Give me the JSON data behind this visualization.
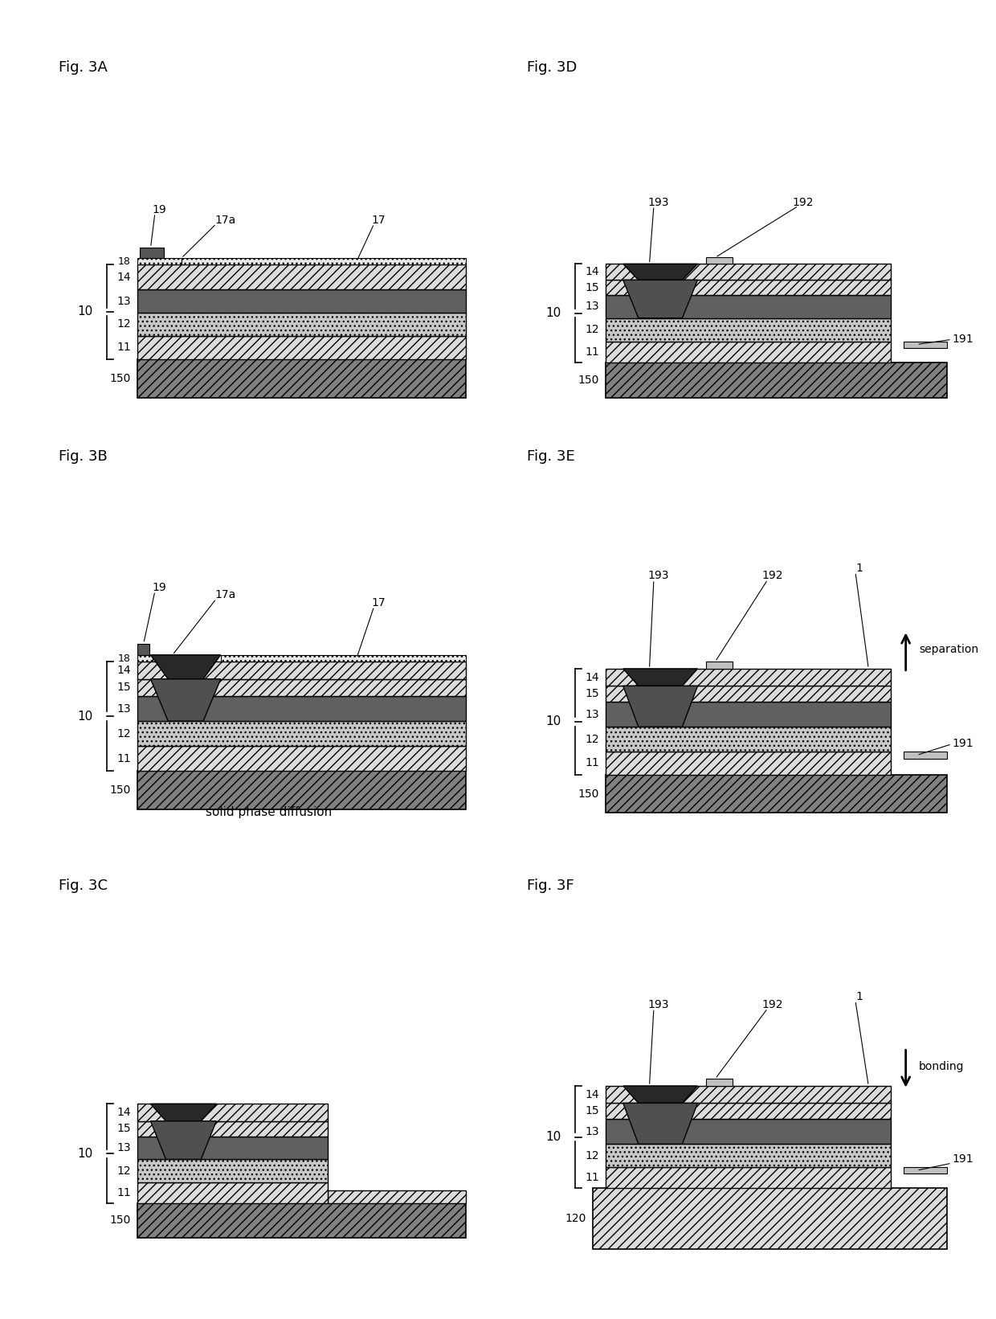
{
  "bg": "#ffffff",
  "C_SUB150": "#808080",
  "C_L11": "#dcdcdc",
  "C_L12": "#c8c8c8",
  "C_L13": "#606060",
  "C_L14": "#dcdcdc",
  "C_L15": "#dcdcdc",
  "C_L17": "#e8e8e8",
  "C_L18": "#e8e8e8",
  "C_L19": "#aaaaaa",
  "C_CONE_TOP": "#282828",
  "C_CONE_BOT": "#505050",
  "C_191": "#c0c0c0",
  "C_192": "#c0c0c0",
  "C_120": "#dcdcdc",
  "panels": {
    "3A": [
      0.05,
      0.69,
      0.44,
      0.27
    ],
    "3B": [
      0.05,
      0.375,
      0.44,
      0.29
    ],
    "3C": [
      0.05,
      0.05,
      0.44,
      0.29
    ],
    "3D": [
      0.52,
      0.69,
      0.44,
      0.27
    ],
    "3E": [
      0.52,
      0.375,
      0.44,
      0.29
    ],
    "3F": [
      0.52,
      0.05,
      0.44,
      0.29
    ]
  }
}
